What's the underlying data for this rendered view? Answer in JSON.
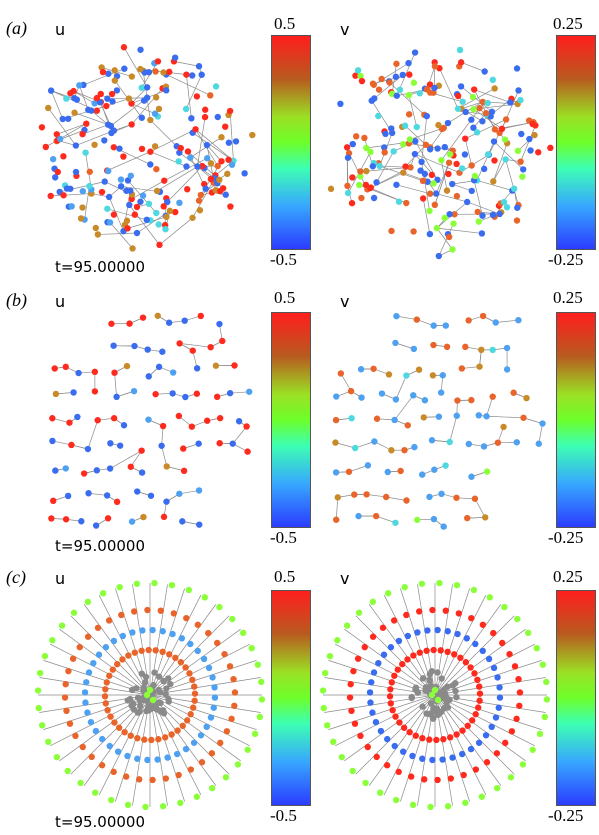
{
  "panels": [
    {
      "label": "(a)",
      "time": "t=95.00000",
      "plots": [
        {
          "variable": "u",
          "colorbar_max": "0.5",
          "colorbar_min": "-0.5"
        },
        {
          "variable": "v",
          "colorbar_max": "0.25",
          "colorbar_min": "-0.25"
        }
      ]
    },
    {
      "label": "(b)",
      "time": "t=95.00000",
      "plots": [
        {
          "variable": "u",
          "colorbar_max": "0.5",
          "colorbar_min": "-0.5"
        },
        {
          "variable": "v",
          "colorbar_max": "0.25",
          "colorbar_min": "-0.25"
        }
      ]
    },
    {
      "label": "(c)",
      "time": "t=95.00000",
      "plots": [
        {
          "variable": "u",
          "colorbar_max": "0.5",
          "colorbar_min": "-0.5"
        },
        {
          "variable": "v",
          "colorbar_max": "0.25",
          "colorbar_min": "-0.25"
        }
      ]
    }
  ],
  "colors": {
    "red": "#ff2a1e",
    "orange": "#e8642a",
    "brown": "#c98a2a",
    "blue": "#3a6cf0",
    "skyblue": "#4ea0f0",
    "cyan": "#4ed8e0",
    "green": "#8aff3a",
    "edge": "#8a8a8a"
  }
}
